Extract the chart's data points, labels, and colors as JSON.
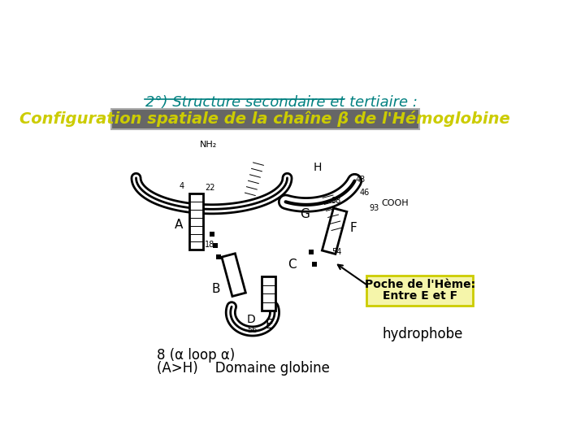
{
  "bg_color": "#ffffff",
  "title1_text": "2°) Structure secondaire et tertiaire :",
  "title1_color": "#008080",
  "title1_fontsize": 13,
  "title2_text": "Configuration spatiale de la chaîne β de l'Hémoglobine",
  "title2_color": "#cccc00",
  "title2_bg": "#555555",
  "title2_fontsize": 14,
  "label_bottom1": "8 (α loop α)",
  "label_bottom2": "(A>H)    Domaine globine",
  "label_hydrophobe": "hydrophobe",
  "label_poche1": "Poche de l'Hème:",
  "label_poche2": "Entre E et F",
  "poche_bg": "#f5f5aa",
  "poche_border": "#cccc00"
}
